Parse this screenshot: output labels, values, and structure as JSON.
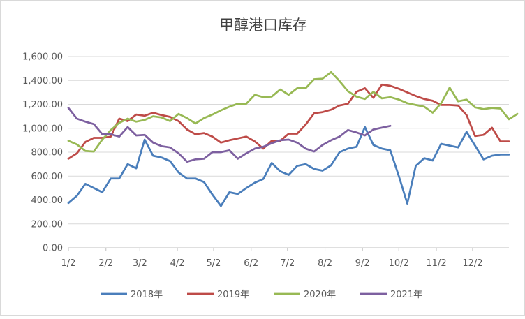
{
  "chart_data": {
    "type": "line",
    "title": "甲醇港口库存",
    "xlabel": "",
    "ylabel": "",
    "ylim": [
      0,
      1600
    ],
    "yticks": [
      "0.00",
      "200.00",
      "400.00",
      "600.00",
      "800.00",
      "1,000.00",
      "1,200.00",
      "1,400.00",
      "1,600.00"
    ],
    "xlim": [
      1,
      53
    ],
    "xticks": [
      {
        "label": "1/2",
        "week": 1
      },
      {
        "label": "2/2",
        "week": 5.43
      },
      {
        "label": "3/2",
        "week": 9.43
      },
      {
        "label": "4/2",
        "week": 13.86
      },
      {
        "label": "5/2",
        "week": 18.14
      },
      {
        "label": "6/2",
        "week": 22.57
      },
      {
        "label": "7/2",
        "week": 26.86
      },
      {
        "label": "8/2",
        "week": 31.29
      },
      {
        "label": "9/2",
        "week": 35.71
      },
      {
        "label": "10/2",
        "week": 40
      },
      {
        "label": "11/2",
        "week": 44.43
      },
      {
        "label": "12/2",
        "week": 48.71
      }
    ],
    "grid": true,
    "legend_position": "bottom",
    "series": [
      {
        "name": "2018年",
        "color": "#4a7ebb",
        "values": [
          375,
          435,
          535,
          500,
          465,
          580,
          580,
          700,
          665,
          905,
          770,
          755,
          725,
          630,
          580,
          580,
          550,
          445,
          350,
          465,
          450,
          500,
          545,
          575,
          710,
          640,
          610,
          685,
          700,
          660,
          645,
          690,
          800,
          830,
          845,
          1010,
          860,
          830,
          815,
          600,
          370,
          685,
          750,
          730,
          870,
          855,
          840,
          970,
          855,
          740,
          770,
          780,
          780
        ]
      },
      {
        "name": "2019年",
        "color": "#be4b48",
        "values": [
          745,
          790,
          885,
          920,
          920,
          930,
          1080,
          1060,
          1115,
          1105,
          1130,
          1110,
          1095,
          1060,
          990,
          950,
          960,
          930,
          880,
          900,
          915,
          930,
          890,
          830,
          895,
          895,
          955,
          955,
          1030,
          1125,
          1135,
          1155,
          1190,
          1205,
          1305,
          1335,
          1255,
          1365,
          1355,
          1330,
          1300,
          1270,
          1245,
          1230,
          1195,
          1195,
          1190,
          1110,
          935,
          945,
          1005,
          890,
          890
        ]
      },
      {
        "name": "2020年",
        "color": "#98b954",
        "values": [
          895,
          865,
          810,
          805,
          905,
          985,
          1045,
          1080,
          1055,
          1070,
          1100,
          1090,
          1060,
          1120,
          1085,
          1040,
          1085,
          1115,
          1150,
          1180,
          1205,
          1205,
          1280,
          1260,
          1265,
          1325,
          1280,
          1335,
          1335,
          1410,
          1415,
          1470,
          1395,
          1310,
          1265,
          1245,
          1305,
          1250,
          1260,
          1240,
          1210,
          1195,
          1180,
          1130,
          1210,
          1340,
          1225,
          1240,
          1175,
          1160,
          1170,
          1165,
          1075,
          1120
        ]
      },
      {
        "name": "2021年",
        "color": "#7d60a0",
        "values": [
          1170,
          1080,
          1055,
          1035,
          950,
          950,
          930,
          1010,
          940,
          945,
          880,
          850,
          840,
          790,
          720,
          740,
          745,
          800,
          800,
          815,
          745,
          790,
          830,
          845,
          875,
          900,
          905,
          880,
          830,
          805,
          860,
          900,
          930,
          985,
          965,
          940,
          990,
          1005,
          1020
        ]
      }
    ]
  }
}
